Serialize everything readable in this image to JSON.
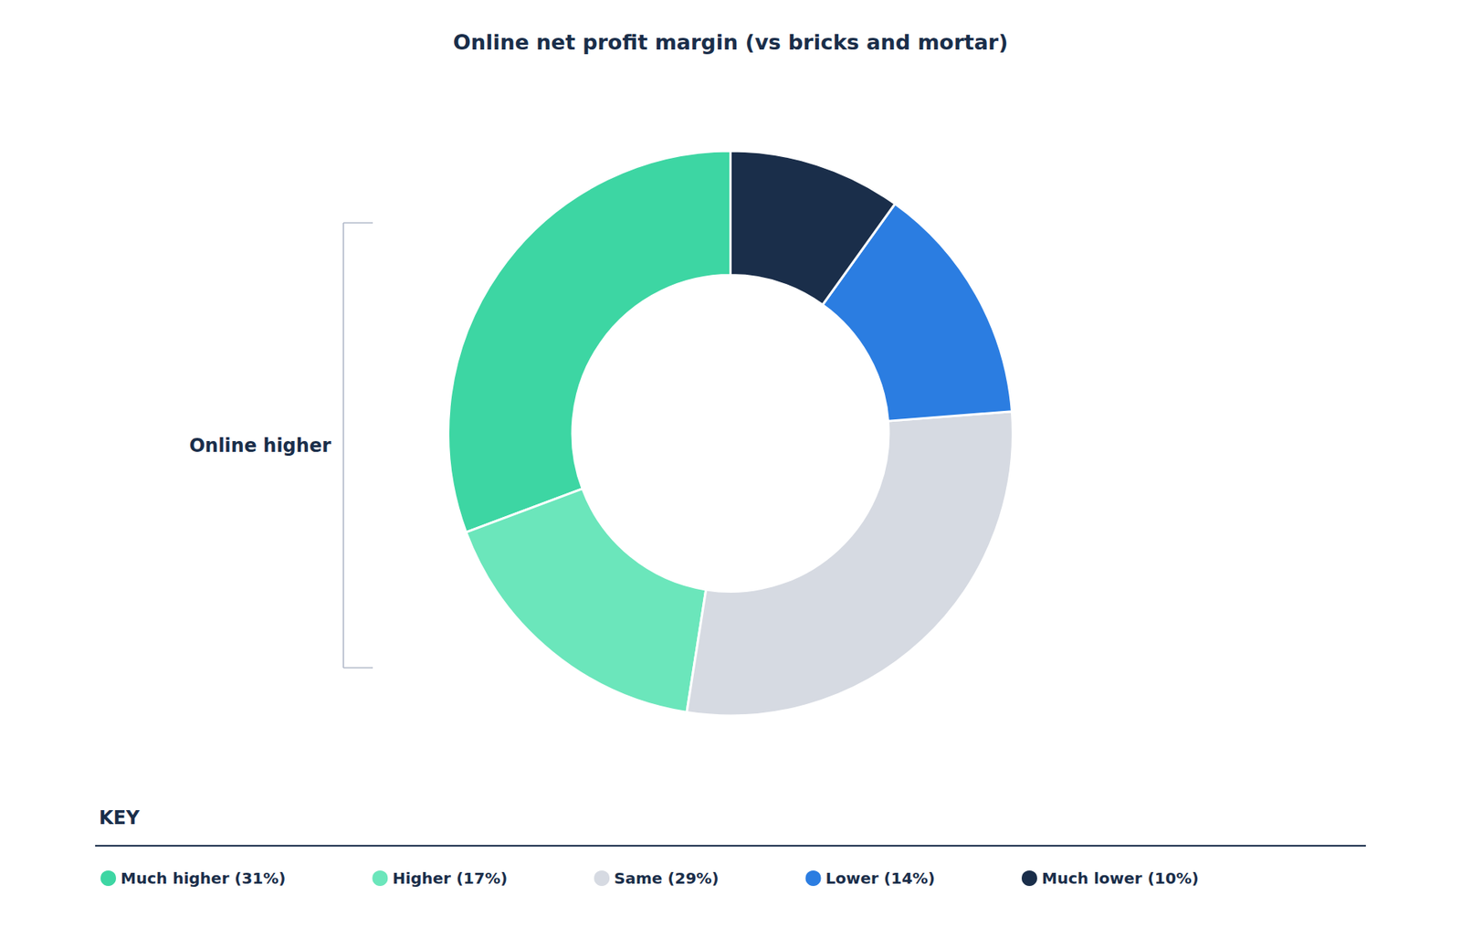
{
  "chart_data": {
    "type": "pie",
    "title": "Online net profit margin (vs bricks and mortar)",
    "categories": [
      "Much higher (31%)",
      "Higher (17%)",
      "Same (29%)",
      "Lower (14%)",
      "Much lower (10%)"
    ],
    "values": [
      31,
      17,
      29,
      14,
      10
    ],
    "colors": [
      "#3dd6a3",
      "#6be6bb",
      "#d6dae2",
      "#2b7de1",
      "#1a2e4a"
    ],
    "annotation": "Online higher",
    "legend_title": "KEY",
    "legend": "bottom"
  }
}
